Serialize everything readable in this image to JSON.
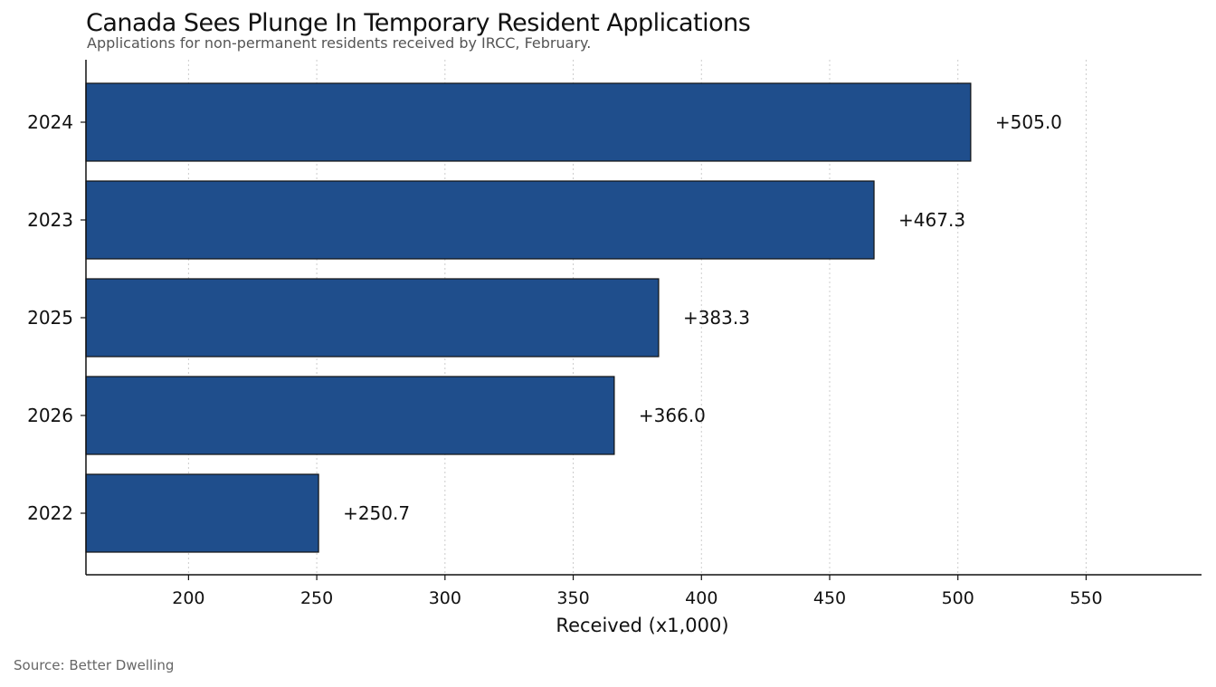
{
  "chart_data": {
    "type": "bar",
    "orientation": "horizontal",
    "title": "Canada Sees Plunge In Temporary Resident Applications",
    "subtitle": "Applications for non-permanent residents received by IRCC, February.",
    "categories": [
      "2024",
      "2023",
      "2025",
      "2026",
      "2022"
    ],
    "values": [
      505.0,
      467.3,
      383.3,
      366.0,
      250.7
    ],
    "data_labels": [
      "+505.0",
      "+467.3",
      "+383.3",
      "+366.0",
      "+250.7"
    ],
    "xlabel": "Received (x1,000)",
    "ylabel": "",
    "xlim": [
      160,
      595
    ],
    "xticks": [
      200,
      250,
      300,
      350,
      400,
      450,
      500,
      550
    ],
    "grid": "vertical dotted",
    "bar_color": "#1f4e8c",
    "bar_edge_color": "#111111",
    "source": "Source: Better Dwelling"
  }
}
